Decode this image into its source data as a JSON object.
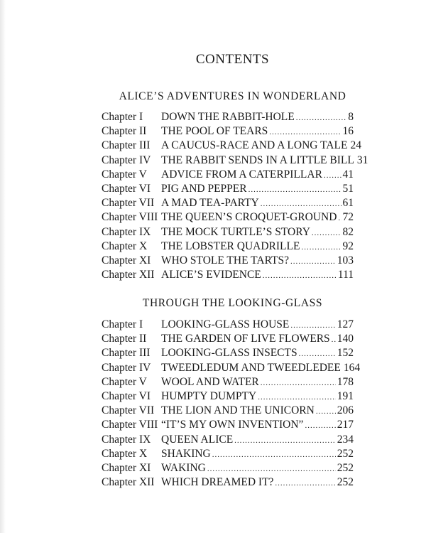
{
  "title": "CONTENTS",
  "books": [
    {
      "heading": "ALICE’S ADVENTURES IN WONDERLAND",
      "chapters": [
        {
          "label": "Chapter I",
          "title": "DOWN THE RABBIT-HOLE",
          "page": "8"
        },
        {
          "label": "Chapter II",
          "title": "THE POOL OF TEARS",
          "page": "16"
        },
        {
          "label": "Chapter III",
          "title": "A CAUCUS-RACE AND A LONG TALE",
          "page": "24"
        },
        {
          "label": "Chapter IV",
          "title": "THE RABBIT SENDS IN A LITTLE BILL",
          "page": "31"
        },
        {
          "label": "Chapter V",
          "title": "ADVICE FROM A CATERPILLAR",
          "page": "41"
        },
        {
          "label": "Chapter VI",
          "title": "PIG AND PEPPER",
          "page": "51"
        },
        {
          "label": "Chapter VII",
          "title": "A MAD TEA-PARTY",
          "page": "61"
        },
        {
          "label": "Chapter VIII",
          "title": "THE QUEEN’S CROQUET-GROUND",
          "page": "72"
        },
        {
          "label": "Chapter IX",
          "title": "THE MOCK TURTLE’S STORY",
          "page": "82"
        },
        {
          "label": "Chapter X",
          "title": "THE LOBSTER QUADRILLE",
          "page": "92"
        },
        {
          "label": "Chapter XI",
          "title": "WHO STOLE THE TARTS?",
          "page": "103"
        },
        {
          "label": "Chapter XII",
          "title": "ALICE’S EVIDENCE",
          "page": "111"
        }
      ]
    },
    {
      "heading": "THROUGH THE LOOKING-GLASS",
      "chapters": [
        {
          "label": "Chapter I",
          "title": "LOOKING-GLASS HOUSE",
          "page": "127"
        },
        {
          "label": "Chapter II",
          "title": "THE GARDEN OF LIVE FLOWERS",
          "page": "140"
        },
        {
          "label": "Chapter III",
          "title": "LOOKING-GLASS INSECTS",
          "page": "152"
        },
        {
          "label": "Chapter IV",
          "title": "TWEEDLEDUM AND TWEEDLEDEE",
          "page": "164"
        },
        {
          "label": "Chapter V",
          "title": "WOOL AND WATER",
          "page": "178"
        },
        {
          "label": "Chapter VI",
          "title": "HUMPTY DUMPTY",
          "page": "191"
        },
        {
          "label": "Chapter VII",
          "title": "THE LION AND THE UNICORN",
          "page": "206"
        },
        {
          "label": "Chapter VIII",
          "title": "“IT’S MY OWN INVENTION”",
          "page": "217"
        },
        {
          "label": "Chapter IX",
          "title": "QUEEN ALICE",
          "page": "234"
        },
        {
          "label": "Chapter X",
          "title": "SHAKING",
          "page": "252"
        },
        {
          "label": "Chapter XI",
          "title": "WAKING",
          "page": "252"
        },
        {
          "label": "Chapter XII",
          "title": "WHICH DREAMED IT?",
          "page": "252"
        }
      ]
    }
  ]
}
